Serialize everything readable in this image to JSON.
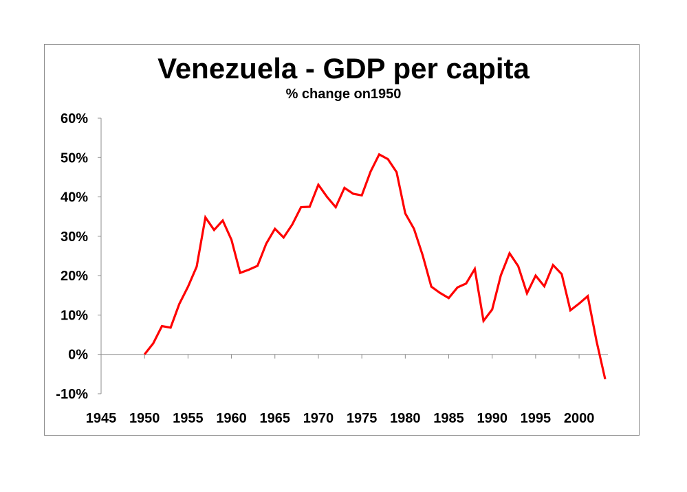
{
  "chart_data": {
    "type": "line",
    "title": "Venezuela - GDP per capita",
    "subtitle": "% change on1950",
    "xlabel": "",
    "ylabel": "",
    "xlim": [
      1945,
      2003
    ],
    "ylim": [
      -10,
      60
    ],
    "x_ticks": [
      1945,
      1950,
      1955,
      1960,
      1965,
      1970,
      1975,
      1980,
      1985,
      1990,
      1995,
      2000
    ],
    "y_ticks": [
      -10,
      0,
      10,
      20,
      30,
      40,
      50,
      60
    ],
    "y_tick_labels": [
      "-10%",
      "0%",
      "10%",
      "20%",
      "30%",
      "40%",
      "50%",
      "60%"
    ],
    "grid": false,
    "line_color": "#ff0000",
    "series": [
      {
        "name": "GDP per capita % change on 1950",
        "x": [
          1950,
          1951,
          1952,
          1953,
          1954,
          1955,
          1956,
          1957,
          1958,
          1959,
          1960,
          1961,
          1962,
          1963,
          1964,
          1965,
          1966,
          1967,
          1968,
          1969,
          1970,
          1971,
          1972,
          1973,
          1974,
          1975,
          1976,
          1977,
          1978,
          1979,
          1980,
          1981,
          1982,
          1983,
          1984,
          1985,
          1986,
          1987,
          1988,
          1989,
          1990,
          1991,
          1992,
          1993,
          1994,
          1995,
          1996,
          1997,
          1998,
          1999,
          2000,
          2001,
          2002,
          2003
        ],
        "values": [
          0,
          2.8,
          7.2,
          6.8,
          12.8,
          17.2,
          22.3,
          34.8,
          31.6,
          34.0,
          29.1,
          20.7,
          21.5,
          22.5,
          28.1,
          31.9,
          29.7,
          33.0,
          37.4,
          37.5,
          43.1,
          40.0,
          37.4,
          42.3,
          40.8,
          40.4,
          46.4,
          50.8,
          49.6,
          46.3,
          35.8,
          31.9,
          25.2,
          17.2,
          15.6,
          14.3,
          17.0,
          18.0,
          21.7,
          8.5,
          11.4,
          20.1,
          25.7,
          22.4,
          15.5,
          20.0,
          17.3,
          22.7,
          20.4,
          11.2,
          12.9,
          14.8,
          3.4,
          -6.3
        ]
      }
    ]
  }
}
